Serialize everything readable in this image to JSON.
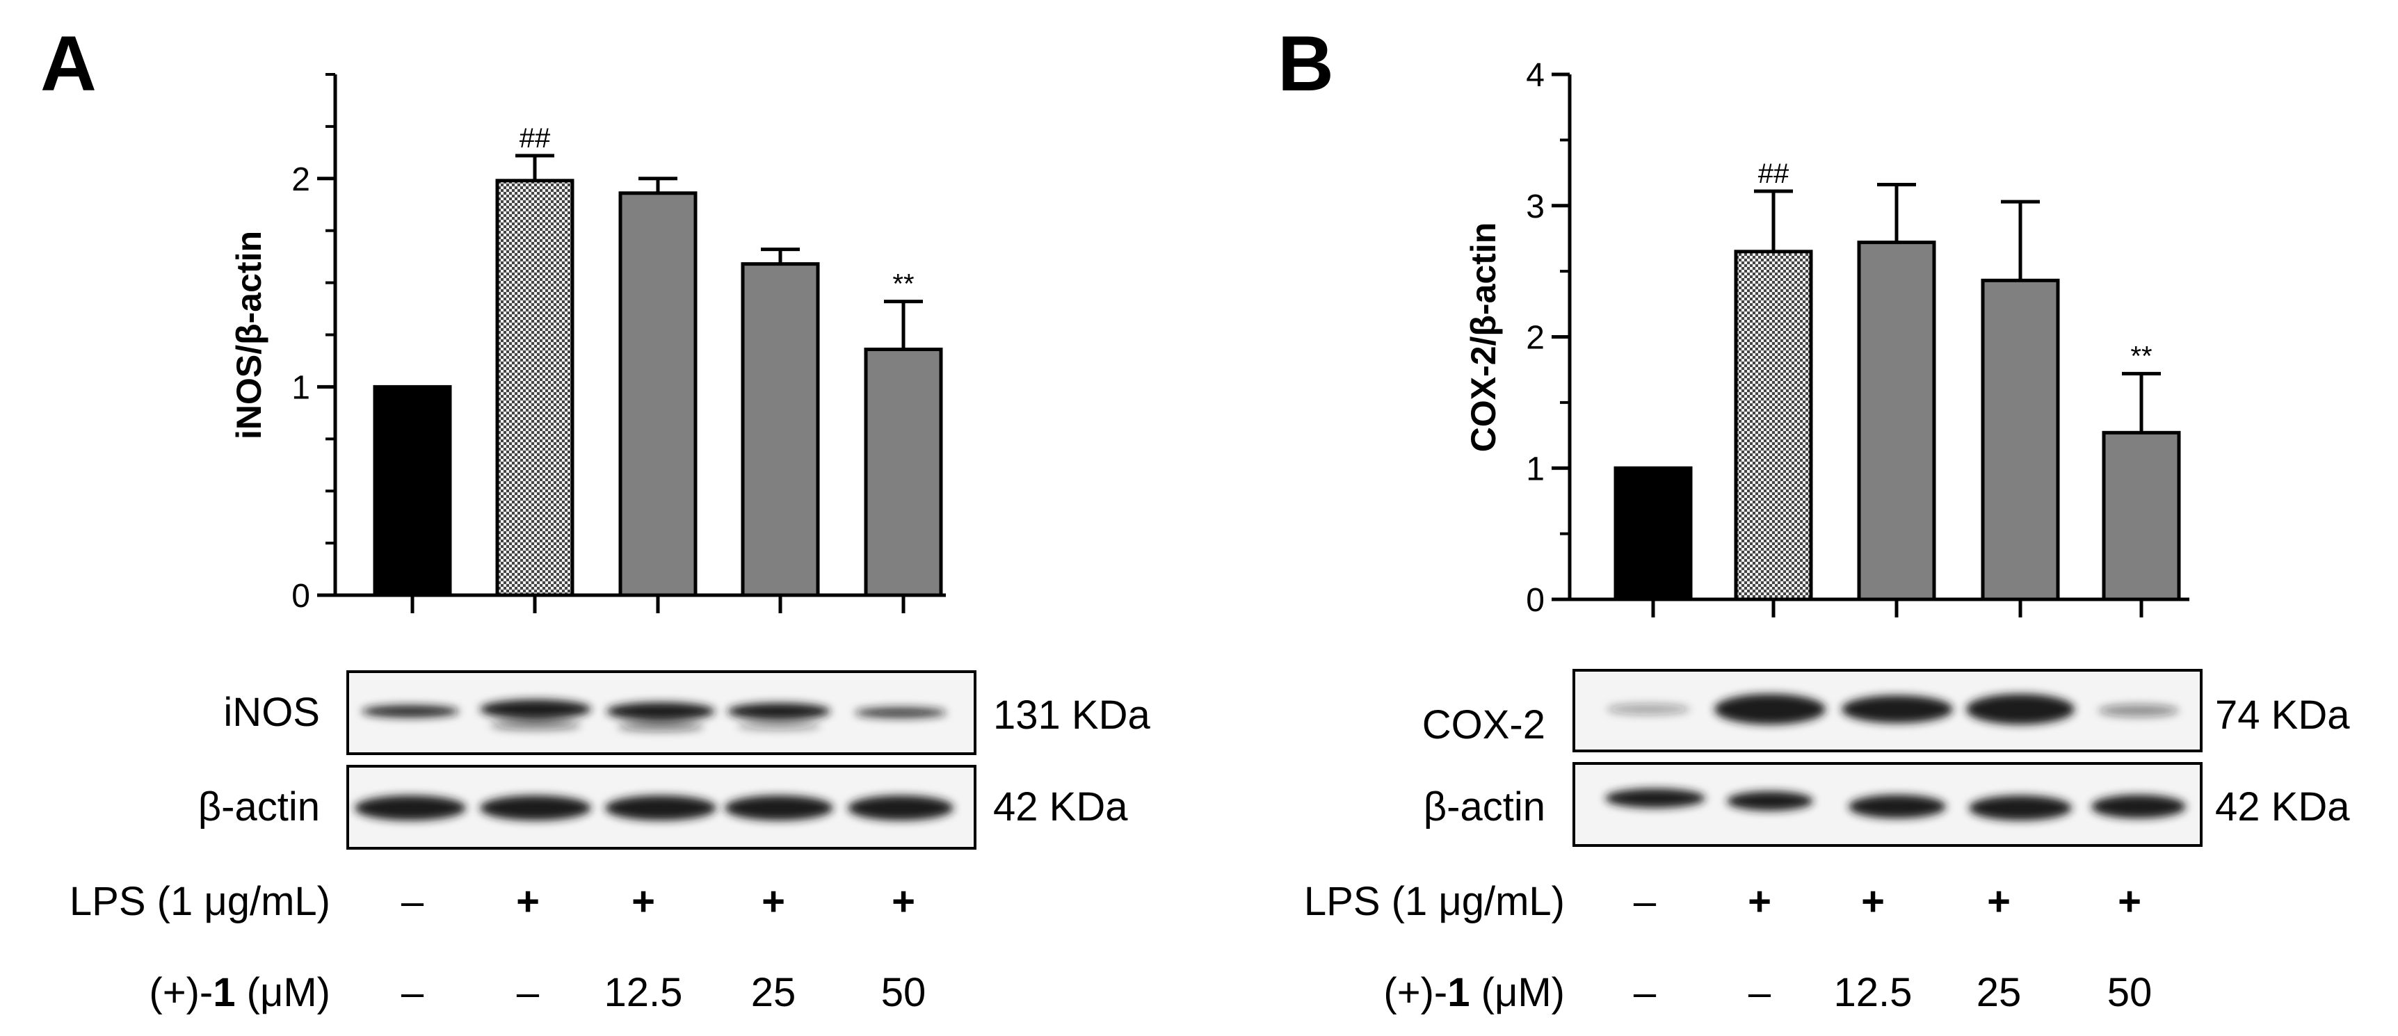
{
  "chart_data": [
    {
      "type": "bar",
      "panel_label": "A",
      "ylabel": "iNOS/β-actin",
      "ylim": [
        0,
        2.5
      ],
      "yticks": [
        "0",
        "1",
        "2"
      ],
      "ytick_values": [
        0,
        1,
        2
      ],
      "minor_tick_step": 0.25,
      "values": [
        1.0,
        1.99,
        1.93,
        1.59,
        1.18
      ],
      "errors": [
        0,
        0.12,
        0.07,
        0.07,
        0.23
      ],
      "fills": [
        "solid-black",
        "checker",
        "gray",
        "gray",
        "gray"
      ],
      "annotations": [
        "",
        "##",
        "",
        "",
        "**"
      ],
      "blot": {
        "rows": [
          {
            "protein": "iNOS",
            "mw": "131 KDa"
          },
          {
            "protein": "β-actin",
            "mw": "42 KDa"
          }
        ]
      },
      "conditions": {
        "lps_label": "LPS (1 μg/mL)",
        "lps": [
          "–",
          "+",
          "+",
          "+",
          "+"
        ],
        "cmpd_label_pre": "(+)-",
        "cmpd_label_bold": "1",
        "cmpd_label_post": " (μM)",
        "cmpd": [
          "–",
          "–",
          "12.5",
          "25",
          "50"
        ]
      }
    },
    {
      "type": "bar",
      "panel_label": "B",
      "ylabel": "COX-2/β-actin",
      "ylim": [
        0,
        4
      ],
      "yticks": [
        "0",
        "1",
        "2",
        "3",
        "4"
      ],
      "ytick_values": [
        0,
        1,
        2,
        3,
        4
      ],
      "minor_tick_step": 0.5,
      "values": [
        1.0,
        2.65,
        2.72,
        2.43,
        1.27
      ],
      "errors": [
        0,
        0.46,
        0.44,
        0.6,
        0.45
      ],
      "fills": [
        "solid-black",
        "checker",
        "gray",
        "gray",
        "gray"
      ],
      "annotations": [
        "",
        "##",
        "",
        "",
        "**"
      ],
      "blot": {
        "rows": [
          {
            "protein": "COX-2",
            "mw": "74 KDa"
          },
          {
            "protein": "β-actin",
            "mw": "42 KDa"
          }
        ]
      },
      "conditions": {
        "lps_label": "LPS (1 μg/mL)",
        "lps": [
          "–",
          "+",
          "+",
          "+",
          "+"
        ],
        "cmpd_label_pre": "(+)-",
        "cmpd_label_bold": "1",
        "cmpd_label_post": " (μM)",
        "cmpd": [
          "–",
          "–",
          "12.5",
          "25",
          "50"
        ]
      }
    }
  ],
  "colors": {
    "black_bar": "#000000",
    "gray_bar": "#808080",
    "checker_dark": "#444444",
    "checker_light": "#f0f0f0",
    "blot_bg": "#f4f4f4",
    "band": "#1a1a1a"
  }
}
